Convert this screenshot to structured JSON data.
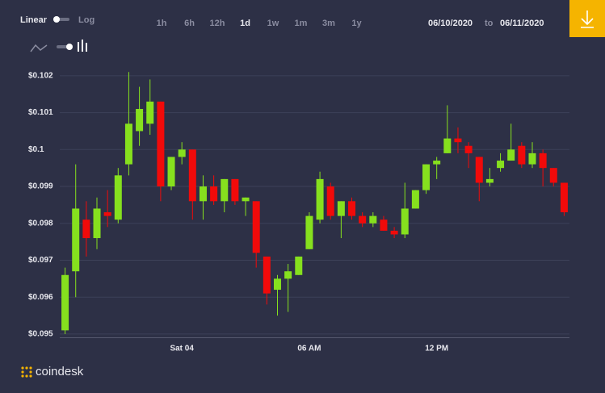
{
  "controls": {
    "scale_linear": "Linear",
    "scale_log": "Log",
    "ranges": [
      "1h",
      "6h",
      "12h",
      "1d",
      "1w",
      "1m",
      "3m",
      "1y"
    ],
    "active_range": 3,
    "date_from": "06/10/2020",
    "date_sep": "to",
    "date_to": "06/11/2020",
    "brand": "coindesk"
  },
  "chart_data": {
    "type": "candlestick",
    "categories": [
      null,
      null,
      null,
      null,
      null,
      null,
      null,
      null,
      null,
      null,
      null,
      "Sat 04",
      null,
      null,
      null,
      null,
      null,
      null,
      null,
      null,
      null,
      null,
      null,
      "06 AM",
      null,
      null,
      null,
      null,
      null,
      null,
      null,
      null,
      null,
      null,
      null,
      "12 PM",
      null,
      null,
      null,
      null,
      null,
      null,
      null,
      null,
      null,
      null,
      null,
      null
    ],
    "open": [
      0.0951,
      0.0967,
      0.0981,
      0.0976,
      0.0983,
      0.0981,
      0.0996,
      0.1005,
      0.1007,
      0.1013,
      0.099,
      0.0998,
      0.1,
      0.0986,
      0.099,
      0.0986,
      0.0992,
      0.0986,
      0.0986,
      0.0971,
      0.0962,
      0.0965,
      0.0966,
      0.0973,
      0.0981,
      0.099,
      0.0982,
      0.0986,
      0.0982,
      0.098,
      0.0981,
      0.0978,
      0.0977,
      0.0984,
      0.0989,
      0.0996,
      0.0999,
      0.1003,
      0.1001,
      0.0998,
      0.0991,
      0.0995,
      0.0997,
      0.1001,
      0.0996,
      0.0999,
      0.0995,
      0.0991
    ],
    "high": [
      0.0968,
      0.0996,
      0.0986,
      0.0987,
      0.0989,
      0.0995,
      0.1021,
      0.1017,
      0.1019,
      0.1013,
      0.0998,
      0.1002,
      0.1,
      0.0993,
      0.0993,
      0.0992,
      0.0992,
      0.0987,
      0.0986,
      0.0971,
      0.0966,
      0.0969,
      0.0971,
      0.0983,
      0.0994,
      0.0991,
      0.0986,
      0.0987,
      0.0983,
      0.0983,
      0.0982,
      0.0979,
      0.0991,
      0.0989,
      0.0996,
      0.0998,
      0.1012,
      0.1006,
      0.1002,
      0.0998,
      0.0995,
      0.0999,
      0.1007,
      0.1002,
      0.1002,
      0.1,
      0.0995,
      0.0991
    ],
    "low": [
      0.095,
      0.096,
      0.0971,
      0.0973,
      0.0979,
      0.098,
      0.0993,
      0.1001,
      0.1004,
      0.0986,
      0.0989,
      0.0996,
      0.0981,
      0.0981,
      0.0985,
      0.0983,
      0.0985,
      0.0982,
      0.0968,
      0.0958,
      0.0955,
      0.0956,
      0.0966,
      0.0973,
      0.098,
      0.0981,
      0.0976,
      0.0981,
      0.0979,
      0.0979,
      0.0978,
      0.0976,
      0.0976,
      0.0984,
      0.0988,
      0.0992,
      0.0999,
      0.0999,
      0.0995,
      0.0986,
      0.099,
      0.0994,
      0.0997,
      0.0995,
      0.0995,
      0.099,
      0.099,
      0.0982
    ],
    "close": [
      0.0966,
      0.0984,
      0.0976,
      0.0984,
      0.0982,
      0.0993,
      0.1007,
      0.1011,
      0.1013,
      0.099,
      0.0998,
      0.1,
      0.0986,
      0.099,
      0.0986,
      0.0992,
      0.0986,
      0.0987,
      0.0972,
      0.0961,
      0.0965,
      0.0967,
      0.0971,
      0.0982,
      0.0992,
      0.0982,
      0.0986,
      0.0982,
      0.098,
      0.0982,
      0.0978,
      0.0977,
      0.0984,
      0.0989,
      0.0996,
      0.0997,
      0.1003,
      0.1002,
      0.0999,
      0.0991,
      0.0992,
      0.0997,
      0.1,
      0.0996,
      0.0999,
      0.0995,
      0.0991,
      0.0983
    ],
    "up_color": "#86e01e",
    "down_color": "#f10a0a",
    "ylim": [
      0.0949,
      0.1025
    ],
    "yticks": [
      {
        "value": 0.095,
        "label": "$0.095"
      },
      {
        "value": 0.096,
        "label": "$0.096"
      },
      {
        "value": 0.097,
        "label": "$0.097"
      },
      {
        "value": 0.098,
        "label": "$0.098"
      },
      {
        "value": 0.099,
        "label": "$0.099"
      },
      {
        "value": 0.1,
        "label": "$0.1"
      },
      {
        "value": 0.101,
        "label": "$0.101"
      },
      {
        "value": 0.102,
        "label": "$0.102"
      }
    ],
    "grid": true
  }
}
